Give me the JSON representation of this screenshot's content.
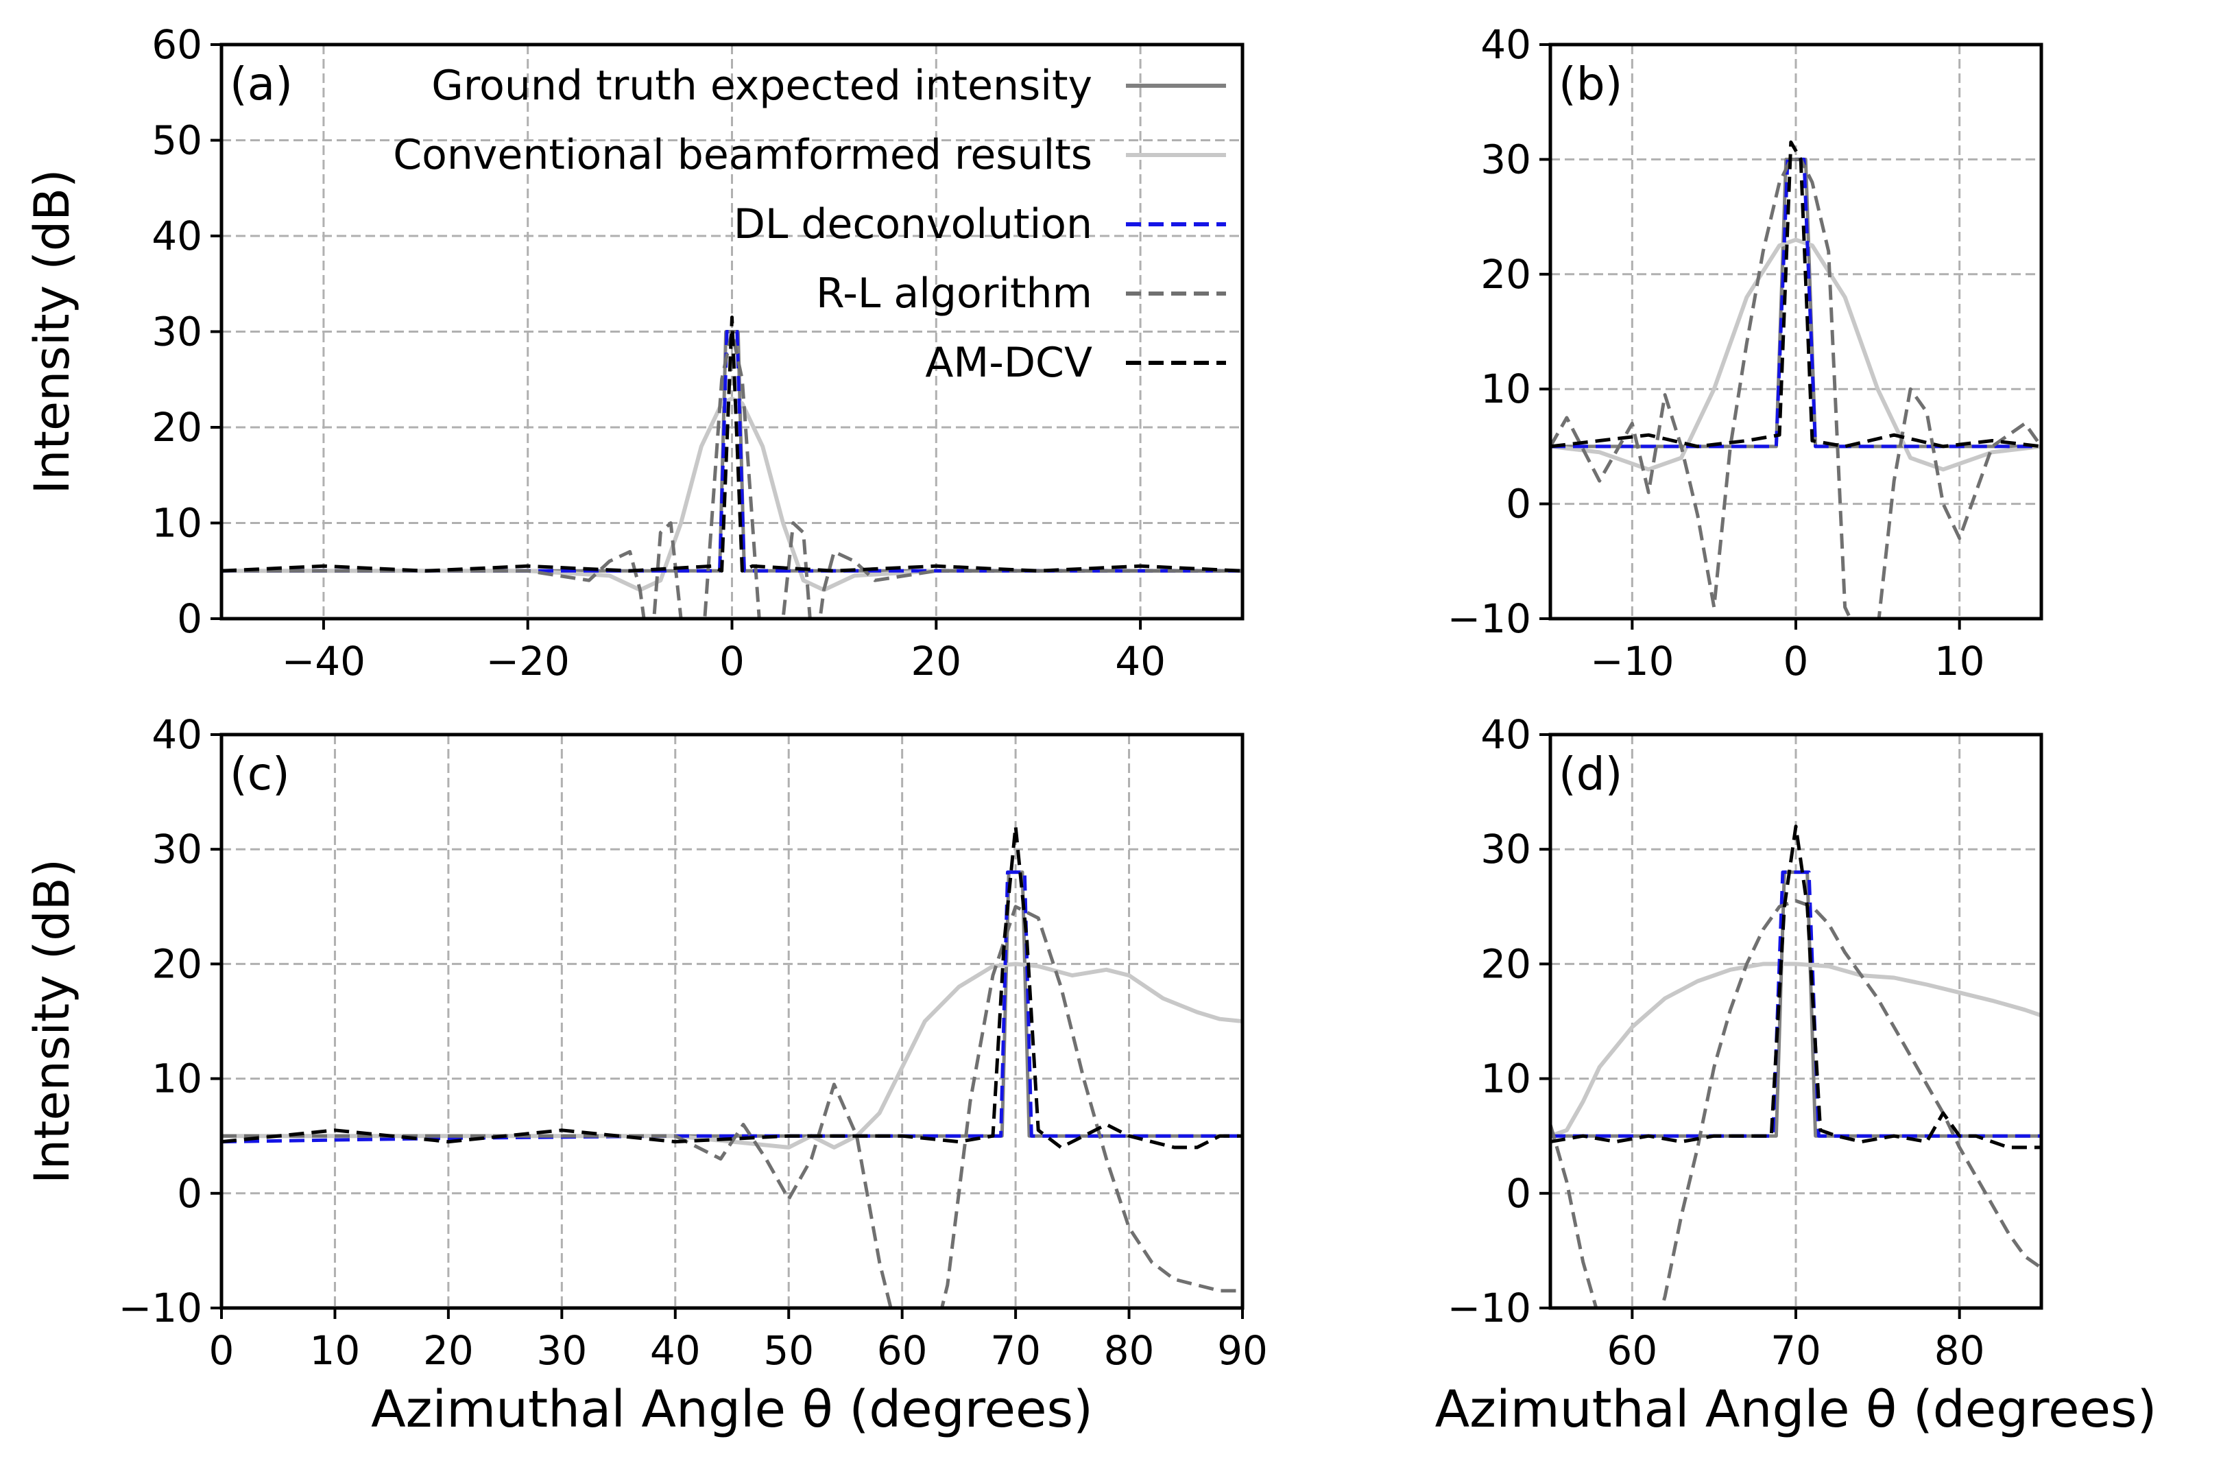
{
  "chart_data": [
    {
      "panel": "(a)",
      "type": "line",
      "xlim": [
        -50,
        50
      ],
      "ylim": [
        0,
        60
      ],
      "xticks": [
        -40,
        -20,
        0,
        20,
        40
      ],
      "xtick_labels": [
        "−40",
        "−20",
        "0",
        "20",
        "40"
      ],
      "yticks": [
        0,
        10,
        20,
        30,
        40,
        50,
        60
      ],
      "ytick_labels": [
        "0",
        "10",
        "20",
        "30",
        "40",
        "50",
        "60"
      ],
      "xlabel": "",
      "ylabel": "Intensity (dB)",
      "grid": true,
      "legend_position": "top-right",
      "series": [
        {
          "name": "Ground truth expected intensity",
          "color": "#808080",
          "dash": "solid",
          "x": [
            -50,
            -40,
            -30,
            -20,
            -10,
            -5,
            -1.2,
            -0.6,
            0.6,
            1.2,
            5,
            10,
            20,
            30,
            40,
            50
          ],
          "values": [
            5,
            5,
            5,
            5,
            5,
            5,
            5,
            30,
            30,
            5,
            5,
            5,
            5,
            5,
            5,
            5
          ]
        },
        {
          "name": "Conventional beamformed results",
          "color": "#c8c8c8",
          "dash": "solid",
          "x": [
            -50,
            -30,
            -20,
            -12,
            -9,
            -7,
            -5,
            -3,
            -1,
            0,
            1,
            3,
            5,
            7,
            9,
            12,
            20,
            30,
            50
          ],
          "values": [
            5,
            5,
            5,
            4.5,
            3,
            4,
            10,
            18,
            22.5,
            23,
            22.5,
            18,
            10,
            4,
            3,
            4.5,
            5,
            5,
            5
          ]
        },
        {
          "name": "DL deconvolution",
          "color": "#1414e6",
          "dash": "dashed",
          "x": [
            -50,
            -30,
            -10,
            -3,
            -1.2,
            -0.5,
            0.5,
            1.2,
            3,
            10,
            30,
            50
          ],
          "values": [
            5,
            5,
            5,
            5,
            5,
            30,
            30,
            5,
            5,
            5,
            5,
            5
          ]
        },
        {
          "name": "R-L algorithm",
          "color": "#707070",
          "dash": "dashed",
          "x": [
            -50,
            -20,
            -14,
            -12,
            -10,
            -9,
            -8,
            -7,
            -6,
            -5,
            -3,
            -1,
            0,
            1,
            3,
            5,
            6,
            7,
            8,
            9,
            10,
            12,
            14,
            20,
            50
          ],
          "values": [
            5,
            5,
            4,
            6,
            7,
            3,
            -5,
            9,
            10,
            0,
            -5,
            25,
            30,
            25,
            -5,
            0,
            10,
            9,
            -5,
            3,
            7,
            6,
            4,
            5,
            5
          ]
        },
        {
          "name": "AM-DCV",
          "color": "#000000",
          "dash": "dashed",
          "x": [
            -50,
            -40,
            -30,
            -20,
            -10,
            -2,
            -1,
            0,
            1,
            2,
            10,
            20,
            30,
            40,
            50
          ],
          "values": [
            5,
            5.5,
            5,
            5.5,
            5,
            5.5,
            5,
            31.5,
            5,
            5.5,
            5,
            5.5,
            5,
            5.5,
            5
          ]
        }
      ]
    },
    {
      "panel": "(b)",
      "type": "line",
      "xlim": [
        -15,
        15
      ],
      "ylim": [
        -10,
        40
      ],
      "xticks": [
        -10,
        0,
        10
      ],
      "xtick_labels": [
        "−10",
        "0",
        "10"
      ],
      "yticks": [
        -10,
        0,
        10,
        20,
        30,
        40
      ],
      "ytick_labels": [
        "−10",
        "0",
        "10",
        "20",
        "30",
        "40"
      ],
      "xlabel": "",
      "ylabel": "",
      "grid": true,
      "series": [
        {
          "name": "Ground truth expected intensity",
          "color": "#808080",
          "dash": "solid",
          "x": [
            -15,
            -5,
            -1.2,
            -0.6,
            0.6,
            1.2,
            5,
            15
          ],
          "values": [
            5,
            5,
            5,
            30,
            30,
            5,
            5,
            5
          ]
        },
        {
          "name": "Conventional beamformed results",
          "color": "#c8c8c8",
          "dash": "solid",
          "x": [
            -15,
            -12,
            -9,
            -7,
            -5,
            -3,
            -1,
            0,
            1,
            3,
            5,
            7,
            9,
            12,
            15
          ],
          "values": [
            5,
            4.5,
            3,
            4,
            10,
            18,
            22.5,
            23,
            22.5,
            18,
            10,
            4,
            3,
            4.5,
            5
          ]
        },
        {
          "name": "DL deconvolution",
          "color": "#1414e6",
          "dash": "dashed",
          "x": [
            -15,
            -3,
            -1.2,
            -0.5,
            0.5,
            1.2,
            3,
            15
          ],
          "values": [
            5,
            5,
            5,
            30,
            30,
            5,
            5,
            5
          ]
        },
        {
          "name": "R-L algorithm",
          "color": "#707070",
          "dash": "dashed",
          "x": [
            -15,
            -14,
            -12,
            -10,
            -9,
            -8,
            -7,
            -6,
            -5,
            -4,
            -3,
            -2,
            -1,
            -0.3,
            0.3,
            1,
            2,
            3,
            4,
            5,
            6,
            7,
            8,
            9,
            10,
            12,
            14,
            15
          ],
          "values": [
            5,
            7.5,
            2,
            7,
            1,
            9.5,
            5,
            -1,
            -9,
            5,
            14,
            22,
            28,
            30,
            30,
            28,
            22,
            -9,
            -12,
            -11,
            2,
            10,
            8,
            0,
            -3,
            5,
            7,
            5
          ]
        },
        {
          "name": "AM-DCV",
          "color": "#000000",
          "dash": "dashed",
          "x": [
            -15,
            -12,
            -9,
            -6,
            -3,
            -1,
            -0.3,
            0.3,
            1,
            3,
            6,
            9,
            12,
            15
          ],
          "values": [
            5,
            5.5,
            6,
            5,
            5.5,
            6,
            31.5,
            30,
            5.5,
            5,
            6,
            5,
            5.5,
            5
          ]
        }
      ]
    },
    {
      "panel": "(c)",
      "type": "line",
      "xlim": [
        0,
        90
      ],
      "ylim": [
        -10,
        40
      ],
      "xticks": [
        0,
        10,
        20,
        30,
        40,
        50,
        60,
        70,
        80,
        90
      ],
      "xtick_labels": [
        "0",
        "10",
        "20",
        "30",
        "40",
        "50",
        "60",
        "70",
        "80",
        "90"
      ],
      "yticks": [
        -10,
        0,
        10,
        20,
        30,
        40
      ],
      "ytick_labels": [
        "−10",
        "0",
        "10",
        "20",
        "30",
        "40"
      ],
      "xlabel": "Azimuthal Angle θ (degrees)",
      "ylabel": "Intensity (dB)",
      "grid": true,
      "series": [
        {
          "name": "Ground truth expected intensity",
          "color": "#808080",
          "dash": "solid",
          "x": [
            0,
            20,
            40,
            60,
            68.8,
            69.4,
            70.6,
            71.2,
            80,
            90
          ],
          "values": [
            5,
            5,
            5,
            5,
            5,
            28,
            28,
            5,
            5,
            5
          ]
        },
        {
          "name": "Conventional beamformed results",
          "color": "#c8c8c8",
          "dash": "solid",
          "x": [
            0,
            20,
            40,
            50,
            52,
            54,
            56,
            58,
            60,
            62,
            65,
            68,
            70,
            72,
            75,
            78,
            80,
            83,
            86,
            88,
            90
          ],
          "values": [
            5,
            5,
            5,
            4,
            5,
            4,
            5,
            7,
            11,
            15,
            18,
            19.8,
            20,
            19.8,
            19,
            19.5,
            19,
            17,
            15.8,
            15.2,
            15
          ]
        },
        {
          "name": "DL deconvolution",
          "color": "#1414e6",
          "dash": "dashed",
          "x": [
            0,
            20,
            40,
            60,
            68.7,
            69.3,
            70.8,
            71.4,
            80,
            90
          ],
          "values": [
            4.5,
            4.8,
            5,
            5,
            5,
            28,
            28,
            5,
            5,
            5
          ]
        },
        {
          "name": "R-L algorithm",
          "color": "#707070",
          "dash": "dashed",
          "x": [
            0,
            40,
            44,
            46,
            48,
            50,
            52,
            54,
            56,
            58,
            60,
            62,
            64,
            66,
            68,
            70,
            72,
            74,
            76,
            78,
            80,
            82,
            84,
            86,
            88,
            90
          ],
          "values": [
            5,
            5,
            3,
            6,
            3,
            -0.5,
            3,
            9.5,
            5,
            -6,
            -14,
            -16,
            -8,
            8,
            19,
            25,
            24,
            18,
            10,
            3,
            -3,
            -6,
            -7.5,
            -8,
            -8.5,
            -8.5
          ]
        },
        {
          "name": "AM-DCV",
          "color": "#000000",
          "dash": "dashed",
          "x": [
            0,
            10,
            20,
            30,
            40,
            50,
            60,
            65,
            68,
            69,
            70,
            71,
            72,
            74,
            76,
            78,
            80,
            82,
            84,
            86,
            88,
            90
          ],
          "values": [
            4.5,
            5.5,
            4.5,
            5.5,
            4.5,
            5,
            5,
            4.5,
            5,
            22,
            32,
            22,
            5.5,
            4,
            5,
            6,
            5,
            4.5,
            4,
            4,
            5,
            5
          ]
        }
      ]
    },
    {
      "panel": "(d)",
      "type": "line",
      "xlim": [
        55,
        85
      ],
      "ylim": [
        -10,
        40
      ],
      "xticks": [
        60,
        70,
        80
      ],
      "xtick_labels": [
        "60",
        "70",
        "80"
      ],
      "yticks": [
        -10,
        0,
        10,
        20,
        30,
        40
      ],
      "ytick_labels": [
        "−10",
        "0",
        "10",
        "20",
        "30",
        "40"
      ],
      "xlabel": "Azimuthal Angle θ (degrees)",
      "ylabel": "",
      "grid": true,
      "series": [
        {
          "name": "Ground truth expected intensity",
          "color": "#808080",
          "dash": "solid",
          "x": [
            55,
            60,
            65,
            68.8,
            69.3,
            70.7,
            71.2,
            75,
            80,
            85
          ],
          "values": [
            5,
            5,
            5,
            5,
            28,
            28,
            5,
            5,
            5,
            5
          ]
        },
        {
          "name": "Conventional beamformed results",
          "color": "#c8c8c8",
          "dash": "solid",
          "x": [
            55,
            56,
            57,
            58,
            60,
            62,
            64,
            66,
            68,
            70,
            72,
            74,
            76,
            78,
            80,
            82,
            84,
            85
          ],
          "values": [
            5,
            5.5,
            8,
            11,
            14.5,
            17,
            18.5,
            19.5,
            20,
            20,
            19.8,
            19,
            18.8,
            18.2,
            17.5,
            16.8,
            16,
            15.5
          ]
        },
        {
          "name": "DL deconvolution",
          "color": "#1414e6",
          "dash": "dashed",
          "x": [
            55,
            60,
            65,
            68.6,
            69.2,
            70.8,
            71.4,
            75,
            80,
            85
          ],
          "values": [
            5,
            5,
            5,
            5,
            28,
            28,
            5,
            5,
            5,
            5
          ]
        },
        {
          "name": "R-L algorithm",
          "color": "#707070",
          "dash": "dashed",
          "x": [
            55,
            56,
            57,
            58,
            59,
            60,
            61,
            62,
            63,
            64,
            65,
            66,
            67,
            68,
            69,
            70,
            71,
            72,
            73,
            74,
            75,
            76,
            77,
            78,
            79,
            80,
            81,
            82,
            83,
            84,
            85
          ],
          "values": [
            6,
            1,
            -6,
            -11,
            -12,
            -13,
            -14,
            -9,
            -2,
            4,
            11,
            16,
            20,
            23,
            25,
            25.5,
            25,
            23.5,
            21,
            19,
            17,
            14.5,
            12,
            9.5,
            7,
            4,
            1.5,
            -1,
            -3.5,
            -5.5,
            -6.5
          ]
        },
        {
          "name": "AM-DCV",
          "color": "#000000",
          "dash": "dashed",
          "x": [
            55,
            57,
            59,
            61,
            63,
            65,
            67,
            68.5,
            69.3,
            70,
            70.7,
            71.5,
            72.5,
            74,
            76,
            78,
            79,
            80,
            81,
            82,
            83,
            84,
            85
          ],
          "values": [
            4.5,
            5,
            4.5,
            5,
            4.5,
            5,
            5,
            5,
            25,
            32,
            25,
            5.5,
            5,
            4.5,
            5,
            4.5,
            7,
            5,
            5,
            4.5,
            4,
            4,
            4
          ]
        }
      ]
    }
  ]
}
